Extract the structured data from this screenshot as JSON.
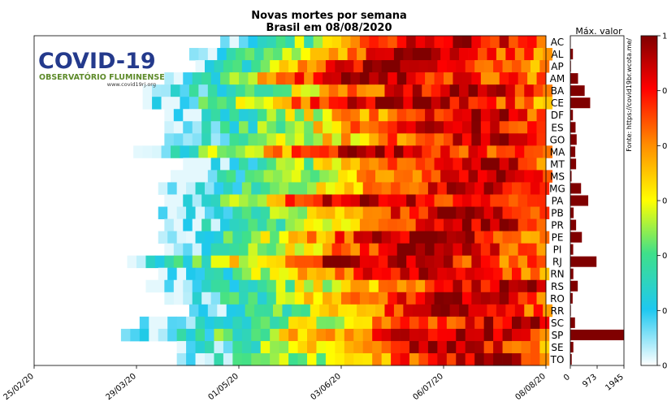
{
  "chart_data": {
    "type": "heatmap",
    "title": "Novas mortes por semana",
    "subtitle": "Brasil em 08/08/2020",
    "y_categories": [
      "AC",
      "AL",
      "AP",
      "AM",
      "BA",
      "CE",
      "DF",
      "ES",
      "GO",
      "MA",
      "MT",
      "MS",
      "MG",
      "PA",
      "PB",
      "PR",
      "PE",
      "PI",
      "RJ",
      "RN",
      "RS",
      "RO",
      "RR",
      "SC",
      "SP",
      "SE",
      "TO"
    ],
    "x_tick_labels": [
      "25/02/20",
      "29/03/20",
      "01/05/20",
      "03/06/20",
      "06/07/20",
      "08/08/20"
    ],
    "x_range": [
      "25/02/20",
      "08/08/20"
    ],
    "color_scale": {
      "min": 0,
      "max": 1,
      "colors": [
        "#ffffff",
        "#1ec8f0",
        "#3fe08a",
        "#ffff00",
        "#ff8c00",
        "#ff0000",
        "#800000"
      ]
    },
    "colorbar_ticks": [
      "0",
      "0.",
      "0.",
      "0.",
      "0.",
      "0.",
      "1"
    ],
    "first_nonzero_day": [
      60,
      50,
      52,
      42,
      35,
      35,
      42,
      42,
      42,
      32,
      48,
      44,
      40,
      42,
      40,
      42,
      40,
      42,
      30,
      40,
      36,
      42,
      50,
      34,
      28,
      46,
      46
    ],
    "peak_day": [
      135,
      122,
      110,
      100,
      140,
      112,
      145,
      140,
      148,
      105,
      146,
      150,
      146,
      100,
      138,
      150,
      122,
      128,
      102,
      126,
      160,
      142,
      140,
      160,
      137,
      128,
      150
    ],
    "max_values_title": "Máx. valor",
    "max_values_axis_ticks": [
      "0",
      "973",
      "1945"
    ],
    "max_values_range": [
      0,
      1945
    ],
    "max_values": [
      12,
      95,
      22,
      280,
      520,
      720,
      95,
      190,
      230,
      180,
      210,
      45,
      390,
      650,
      120,
      210,
      420,
      105,
      950,
      110,
      270,
      85,
      20,
      170,
      1945,
      110,
      50
    ],
    "source": "Fonte: https://covid19br.wcota.me/"
  },
  "logo": {
    "title": "COVID-19",
    "subtitle": "OBSERVATÓRIO FLUMINENSE",
    "url": "www.covid19rj.org"
  }
}
